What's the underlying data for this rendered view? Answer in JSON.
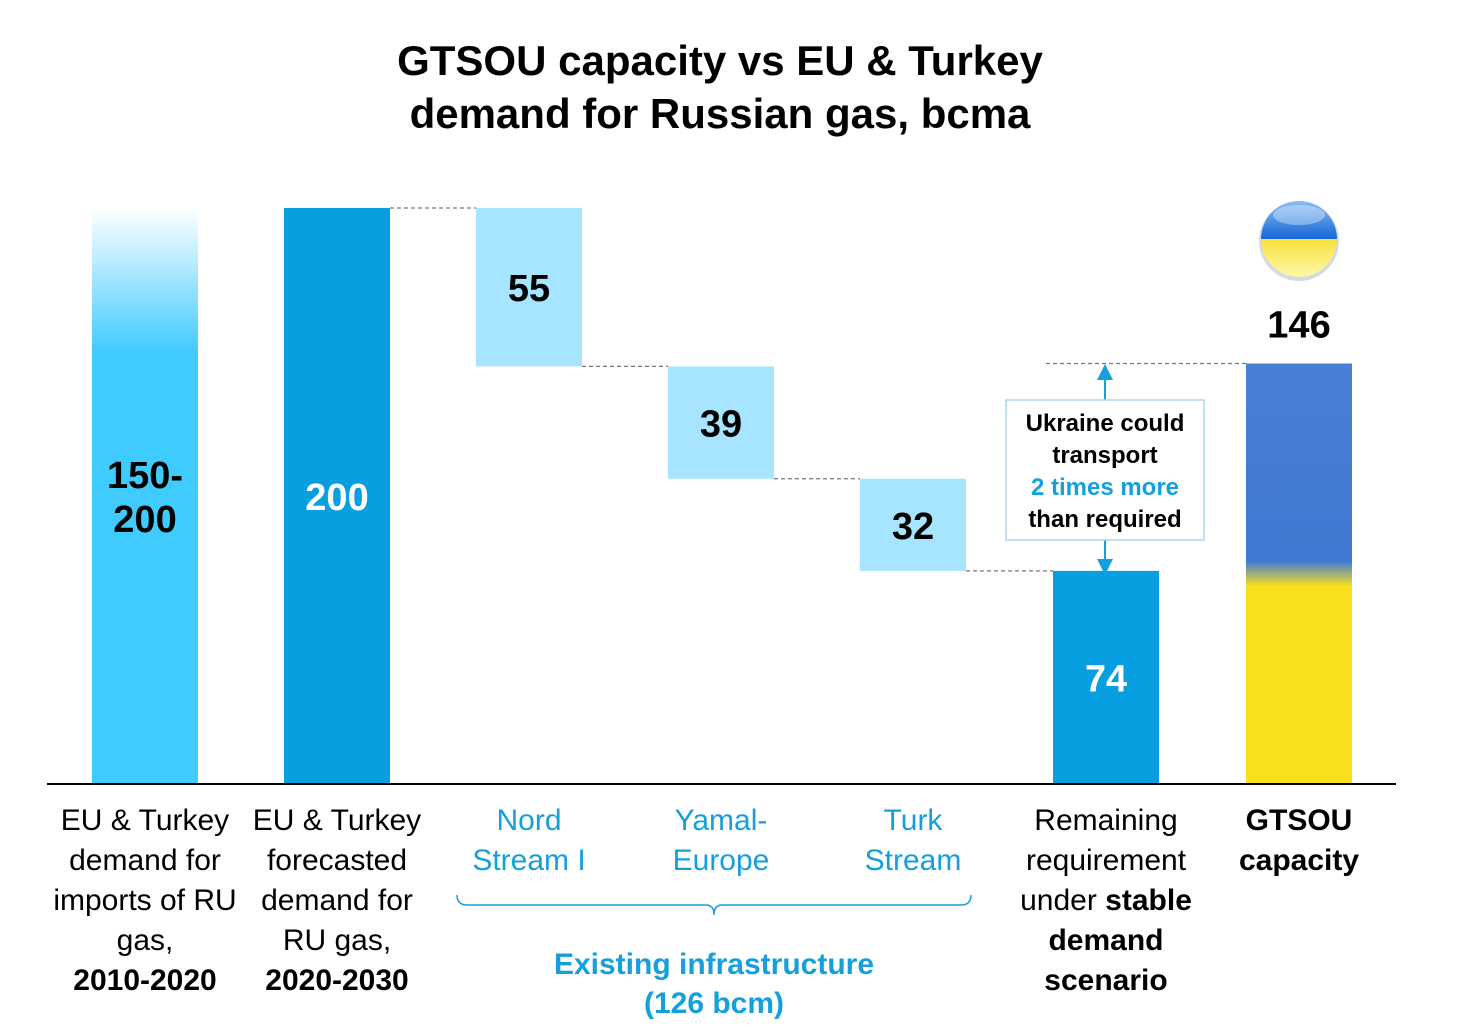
{
  "chart_data": {
    "type": "bar",
    "subtype": "waterfall",
    "title_line1": "GTSOU capacity vs EU & Turkey",
    "title_line2": "demand for Russian gas, bcma",
    "ymax": 200,
    "colors": {
      "light_blue": "#40cbff",
      "mid_blue": "#089fe0",
      "pale_blue": "#a6e4ff",
      "flag_blue": "#3f79d3",
      "flag_yellow": "#f9e01e",
      "accent_text": "#159fdc"
    },
    "bars": [
      {
        "key": "demand-2010-2020",
        "kind": "range",
        "value": 200,
        "solid_value": 150,
        "label_lines": [
          "150-",
          "200"
        ],
        "color": "#40cbff",
        "category_lines": [
          {
            "text": "EU & Turkey",
            "bold": false
          },
          {
            "text": "demand for",
            "bold": false
          },
          {
            "text": "imports of RU",
            "bold": false
          },
          {
            "text": "gas,",
            "bold": false
          },
          {
            "text": "2010-2020",
            "bold": true
          }
        ]
      },
      {
        "key": "forecast-2020-2030",
        "kind": "total",
        "value": 200,
        "label_lines": [
          "200"
        ],
        "color": "#089fe0",
        "category_lines": [
          {
            "text": "EU & Turkey",
            "bold": false
          },
          {
            "text": "forecasted",
            "bold": false
          },
          {
            "text": "demand for",
            "bold": false
          },
          {
            "text": "RU gas,",
            "bold": false
          },
          {
            "text": "2020-2030",
            "bold": true
          }
        ]
      },
      {
        "key": "nord-stream",
        "kind": "step",
        "value": 55,
        "base": 145,
        "label_lines": [
          "55"
        ],
        "color": "#a6e4ff",
        "category_lines": [
          {
            "text": "Nord",
            "bold": false
          },
          {
            "text": "Stream I",
            "bold": false
          }
        ]
      },
      {
        "key": "yamal-europe",
        "kind": "step",
        "value": 39,
        "base": 106,
        "label_lines": [
          "39"
        ],
        "color": "#a6e4ff",
        "category_lines": [
          {
            "text": "Yamal-",
            "bold": false
          },
          {
            "text": "Europe",
            "bold": false
          }
        ]
      },
      {
        "key": "turk-stream",
        "kind": "step",
        "value": 32,
        "base": 74,
        "label_lines": [
          "32"
        ],
        "color": "#a6e4ff",
        "category_lines": [
          {
            "text": "Turk",
            "bold": false
          },
          {
            "text": "Stream",
            "bold": false
          }
        ]
      },
      {
        "key": "remaining",
        "kind": "total",
        "value": 74,
        "label_lines": [
          "74"
        ],
        "color": "#089fe0",
        "category_lines": [
          {
            "text": "Remaining",
            "bold": false
          },
          {
            "text": "requirement",
            "bold": false
          },
          {
            "runs": [
              {
                "text": "under ",
                "bold": false
              },
              {
                "text": "stable",
                "bold": true
              }
            ]
          },
          {
            "text": "demand",
            "bold": true
          },
          {
            "text": "scenario",
            "bold": true
          }
        ]
      },
      {
        "key": "gtsou-capacity",
        "kind": "flag",
        "value": 146,
        "label_lines": [
          "146"
        ],
        "color": "#3f79d3",
        "category_lines": [
          {
            "text": "GTSOU",
            "bold": true
          },
          {
            "text": "capacity",
            "bold": true
          }
        ]
      }
    ],
    "bracket": {
      "from": "nord-stream",
      "to": "turk-stream",
      "label_line1": "Existing infrastructure",
      "label_line2": "(126 bcm)"
    },
    "callout": {
      "line1": "Ukraine could",
      "line2": "transport",
      "line3": "2 times more",
      "line4": "than required"
    }
  }
}
